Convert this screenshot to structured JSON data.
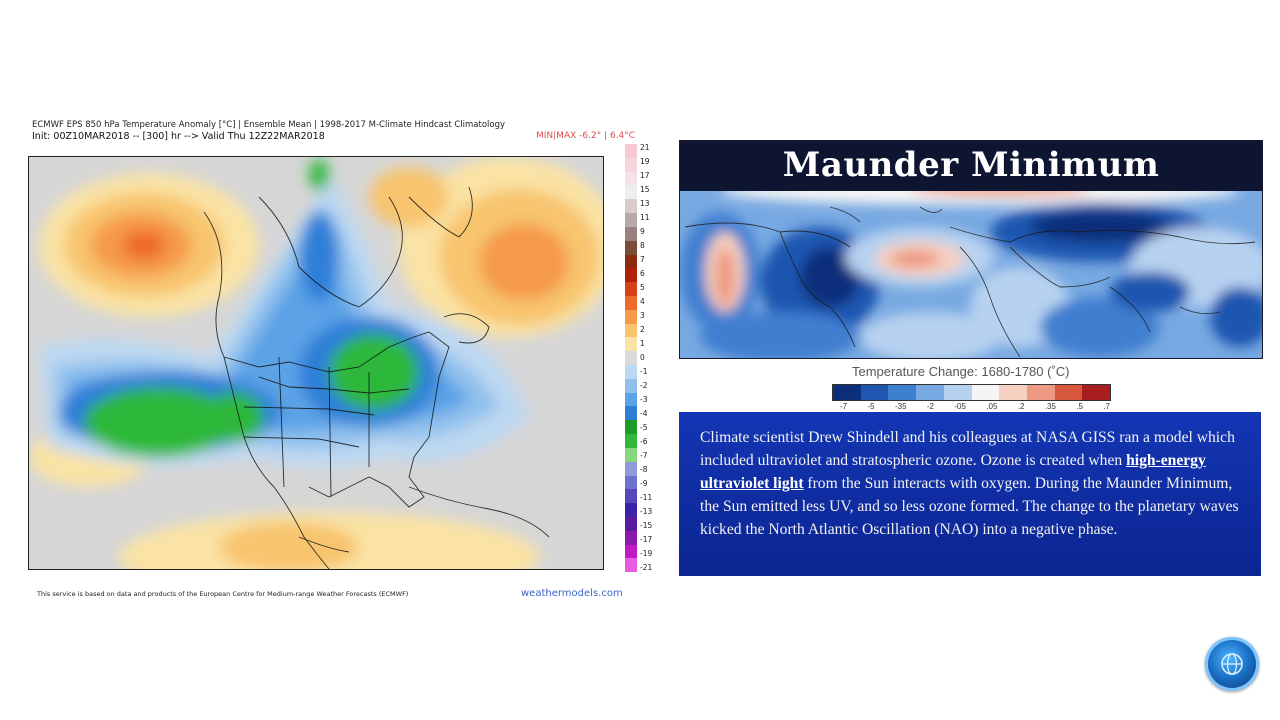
{
  "left_panel": {
    "title": "ECMWF EPS 850 hPa Temperature Anomaly [°C] | Ensemble Mean | 1998-2017 M-Climate Hindcast Climatology",
    "init": "Init: 00Z10MAR2018 -- [300] hr --> Valid Thu 12Z22MAR2018",
    "minmax": "MIN|MAX -6.2° | 6.4°C",
    "colorbar_labels": [
      "21",
      "19",
      "17",
      "15",
      "13",
      "11",
      "9",
      "8",
      "7",
      "6",
      "5",
      "4",
      "3",
      "2",
      "1",
      "0",
      "-1",
      "-2",
      "-3",
      "-4",
      "-5",
      "-6",
      "-7",
      "-8",
      "-9",
      "-11",
      "-13",
      "-15",
      "-17",
      "-19",
      "-21"
    ],
    "colorbar_colors": [
      "#f7c8d0",
      "#f4d6dc",
      "#f6e2e6",
      "#eeeeee",
      "#d8cccc",
      "#b9a8a8",
      "#9b8080",
      "#7a4c3a",
      "#8a2a10",
      "#b0200a",
      "#d8401a",
      "#ee6a2a",
      "#f59a48",
      "#f8c46e",
      "#fae3a4",
      "#d9d9d9",
      "#bcd8f2",
      "#8fc0ec",
      "#5ba2e6",
      "#2e7fd8",
      "#1e9a2a",
      "#2fb83a",
      "#86d87e",
      "#8f9bd8",
      "#6f72cc",
      "#5248b8",
      "#3a23a6",
      "#5a1aa0",
      "#8a1aa8",
      "#c21ac4",
      "#e85ce0"
    ],
    "footer": "This service is based on data and products of the European Centre for Medium-range Weather Forecasts (ECMWF)",
    "brand": "weathermodels.com"
  },
  "right_panel": {
    "title": "Maunder Minimum",
    "scale_title": "Temperature Change: 1680-1780 (˚C)",
    "scale_labels": [
      "-7",
      "-5",
      "-35",
      "-2",
      "-05",
      ".05",
      ".2",
      ".35",
      ".5",
      ".7"
    ],
    "scale_colors": [
      "#0b2f7a",
      "#1f57b0",
      "#3f7fd0",
      "#78a9e2",
      "#b7d2f0",
      "#f5f5f5",
      "#f6d0c0",
      "#ee9a82",
      "#d8583e",
      "#a81e1e"
    ],
    "text_before": "Climate scientist Drew Shindell and his colleagues at NASA GISS ran a model which included ultraviolet and stratospheric ozone. Ozone is created when ",
    "text_highlight": "high-energy ultraviolet light",
    "text_after": " from the Sun interacts with oxygen. During the Maunder Minimum, the Sun emitted less UV, and so less ozone formed. The change to the planetary waves kicked the North Atlantic Oscillation (NAO) into a negative phase."
  },
  "globe_button": {
    "icon": "globe-icon"
  }
}
